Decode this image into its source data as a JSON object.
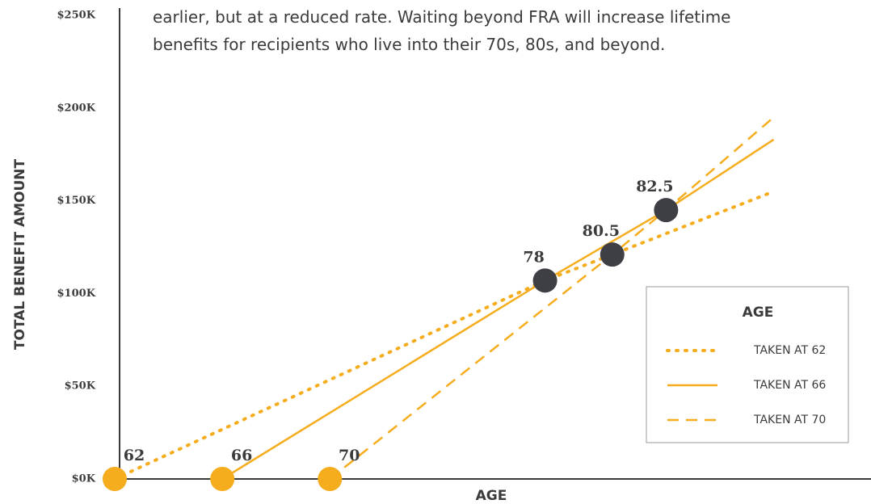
{
  "chart_data": {
    "type": "line",
    "subtitle_lines": [
      "earlier, but at a reduced rate. Waiting beyond FRA will increase lifetime",
      "benefits for recipients who live into their 70s, 80s, and beyond."
    ],
    "x_label": "AGE",
    "y_label": "TOTAL BENEFIT AMOUNT",
    "xlim": [
      62,
      90
    ],
    "ylim": [
      0,
      250
    ],
    "yticks": [
      {
        "value": 0,
        "label": "$0K"
      },
      {
        "value": 50,
        "label": "$50K"
      },
      {
        "value": 100,
        "label": "$100K"
      },
      {
        "value": 150,
        "label": "$150K"
      },
      {
        "value": 200,
        "label": "$200K"
      },
      {
        "value": 250,
        "label": "$250K"
      }
    ],
    "legend_title": "AGE",
    "legend_position": "lower right",
    "series": [
      {
        "name": "TAKEN AT 62",
        "color": "#f5ad1e",
        "style": "dotted",
        "x": [
          62,
          78,
          80.5,
          86.5
        ],
        "values": [
          0,
          107,
          121,
          155
        ]
      },
      {
        "name": "TAKEN AT 66",
        "color": "#f5ad1e",
        "style": "solid",
        "x": [
          66,
          78,
          82.5,
          86.5
        ],
        "values": [
          0,
          107,
          145,
          183
        ]
      },
      {
        "name": "TAKEN AT 70",
        "color": "#f5ad1e",
        "style": "dashed",
        "x": [
          70,
          80.5,
          82.5,
          86.5
        ],
        "values": [
          0,
          121,
          145,
          195
        ]
      }
    ],
    "markers": [
      {
        "x": 62,
        "y": 0,
        "color": "#f5ad1e"
      },
      {
        "x": 66,
        "y": 0,
        "color": "#f5ad1e"
      },
      {
        "x": 70,
        "y": 0,
        "color": "#f5ad1e"
      },
      {
        "x": 78,
        "y": 107,
        "color": "#3d3f44"
      },
      {
        "x": 80.5,
        "y": 121,
        "color": "#3d3f44"
      },
      {
        "x": 82.5,
        "y": 145,
        "color": "#3d3f44"
      }
    ]
  }
}
